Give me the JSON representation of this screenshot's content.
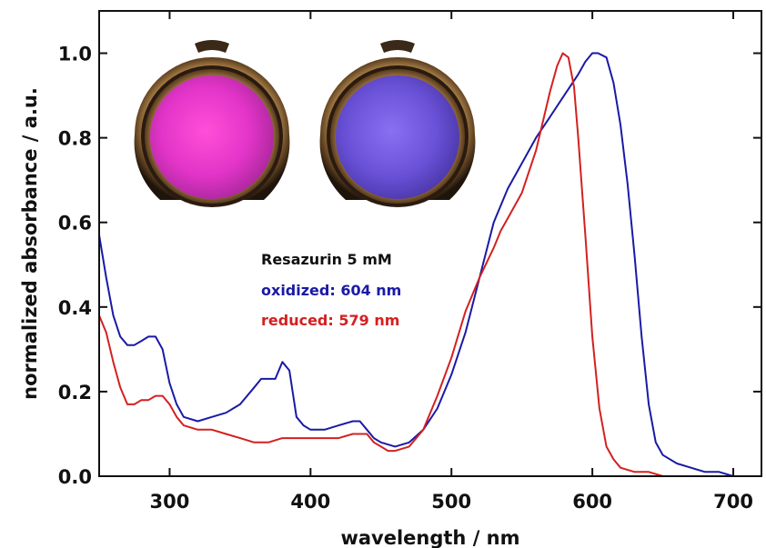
{
  "chart_data": {
    "type": "line",
    "title": "",
    "xlabel": "wavelength / nm",
    "ylabel": "normalized absorbance / a.u.",
    "xlim": [
      250,
      720
    ],
    "ylim": [
      0.0,
      1.1
    ],
    "xticks": [
      300,
      400,
      500,
      600,
      700
    ],
    "xtick_labels": [
      "300",
      "400",
      "500",
      "600",
      "700"
    ],
    "yticks": [
      0.0,
      0.2,
      0.4,
      0.6,
      0.8,
      1.0
    ],
    "ytick_labels": [
      "0.0",
      "0.2",
      "0.4",
      "0.6",
      "0.8",
      "1.0"
    ],
    "grid": false,
    "annotation": {
      "heading": "Resazurin 5 mM",
      "oxidized_label": "oxidized: 604 nm",
      "reduced_label": "reduced: 579 nm"
    },
    "colors": {
      "oxidized": "#1a1aa6",
      "reduced": "#d42020",
      "text": "#111111"
    },
    "inset_images": [
      "pink-droplet-oxidized",
      "violet-droplet-reduced"
    ],
    "series": [
      {
        "color": "#1a1aa6",
        "x": [
          250,
          255,
          260,
          265,
          270,
          275,
          280,
          285,
          290,
          295,
          300,
          305,
          310,
          320,
          330,
          340,
          350,
          360,
          365,
          370,
          375,
          380,
          385,
          390,
          395,
          400,
          410,
          420,
          430,
          435,
          440,
          445,
          450,
          460,
          470,
          480,
          490,
          500,
          510,
          520,
          530,
          540,
          550,
          560,
          570,
          580,
          590,
          595,
          600,
          604,
          610,
          615,
          620,
          625,
          630,
          635,
          640,
          645,
          650,
          660,
          670,
          680,
          690,
          700,
          710,
          720
        ],
        "y": [
          0.57,
          0.47,
          0.38,
          0.33,
          0.31,
          0.31,
          0.32,
          0.33,
          0.33,
          0.3,
          0.22,
          0.17,
          0.14,
          0.13,
          0.14,
          0.15,
          0.17,
          0.21,
          0.23,
          0.23,
          0.23,
          0.27,
          0.25,
          0.14,
          0.12,
          0.11,
          0.11,
          0.12,
          0.13,
          0.13,
          0.11,
          0.09,
          0.08,
          0.07,
          0.08,
          0.11,
          0.16,
          0.24,
          0.34,
          0.47,
          0.6,
          0.68,
          0.74,
          0.8,
          0.85,
          0.9,
          0.95,
          0.98,
          1.0,
          1.0,
          0.99,
          0.93,
          0.83,
          0.69,
          0.52,
          0.33,
          0.17,
          0.08,
          0.05,
          0.03,
          0.02,
          0.01,
          0.01,
          0.0,
          0.0,
          0.0
        ]
      },
      {
        "color": "#d42020",
        "x": [
          250,
          255,
          260,
          265,
          270,
          275,
          280,
          285,
          290,
          295,
          300,
          305,
          310,
          320,
          330,
          340,
          350,
          360,
          370,
          380,
          390,
          400,
          410,
          420,
          430,
          440,
          445,
          450,
          455,
          460,
          470,
          480,
          490,
          500,
          510,
          520,
          530,
          535,
          540,
          550,
          560,
          570,
          575,
          579,
          583,
          587,
          590,
          595,
          600,
          605,
          610,
          615,
          620,
          630,
          640,
          650,
          660,
          680,
          700,
          720
        ],
        "y": [
          0.38,
          0.34,
          0.27,
          0.21,
          0.17,
          0.17,
          0.18,
          0.18,
          0.19,
          0.19,
          0.17,
          0.14,
          0.12,
          0.11,
          0.11,
          0.1,
          0.09,
          0.08,
          0.08,
          0.09,
          0.09,
          0.09,
          0.09,
          0.09,
          0.1,
          0.1,
          0.08,
          0.07,
          0.06,
          0.06,
          0.07,
          0.11,
          0.19,
          0.28,
          0.39,
          0.47,
          0.54,
          0.58,
          0.61,
          0.67,
          0.77,
          0.91,
          0.97,
          1.0,
          0.99,
          0.92,
          0.8,
          0.57,
          0.33,
          0.16,
          0.07,
          0.04,
          0.02,
          0.01,
          0.01,
          0.0,
          0.0,
          0.0,
          0.0,
          0.0
        ]
      }
    ]
  }
}
